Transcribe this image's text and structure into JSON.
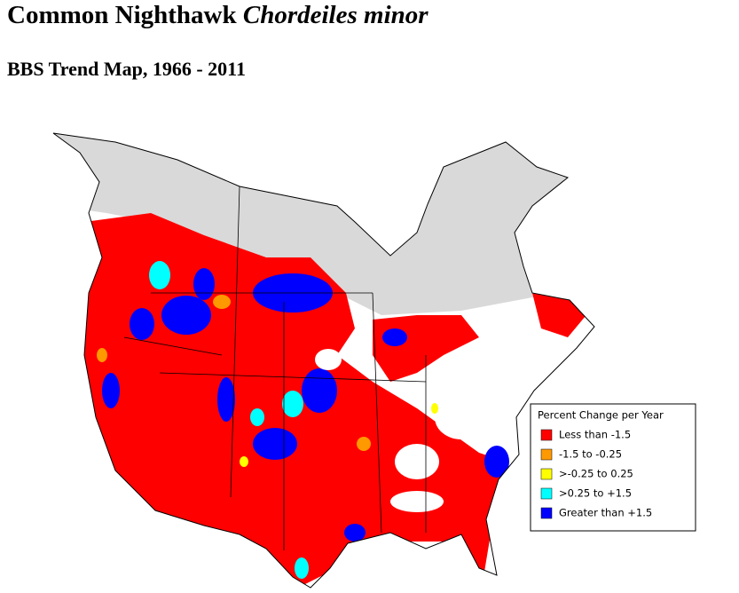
{
  "header": {
    "title": {
      "common": "Common Nighthawk",
      "scientific": "Chordeiles minor"
    },
    "subtitle": "BBS Trend Map, 1966 - 2011"
  },
  "legend": {
    "title": "Percent Change per Year",
    "items": [
      {
        "label": "Less than -1.5",
        "color": "#ff0000"
      },
      {
        "label": "-1.5 to -0.25",
        "color": "#ff9900"
      },
      {
        "label": ">-0.25 to 0.25",
        "color": "#ffff00"
      },
      {
        "label": ">0.25 to +1.5",
        "color": "#00ffff"
      },
      {
        "label": "Greater than +1.5",
        "color": "#0000ff"
      }
    ]
  }
}
